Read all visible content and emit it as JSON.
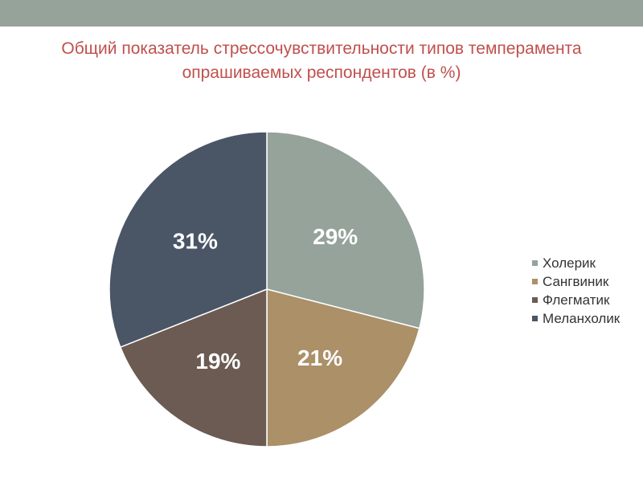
{
  "chart_data": {
    "type": "pie",
    "title_lines": [
      "Общий показатель стрессочувствительности типов темперамента",
      "опрашиваемых респондентов (в %)"
    ],
    "categories": [
      "Холерик",
      "Сангвиник",
      "Флегматик",
      "Меланхолик"
    ],
    "values": [
      29,
      21,
      19,
      31
    ],
    "value_labels": [
      "29%",
      "21%",
      "19%",
      "31%"
    ],
    "colors": [
      "#95a39a",
      "#ab9068",
      "#6c5b52",
      "#4a5566"
    ],
    "legend_placement": "right"
  },
  "decor": {
    "top_band_color": "#95a39a",
    "title_color": "#c0504d"
  }
}
